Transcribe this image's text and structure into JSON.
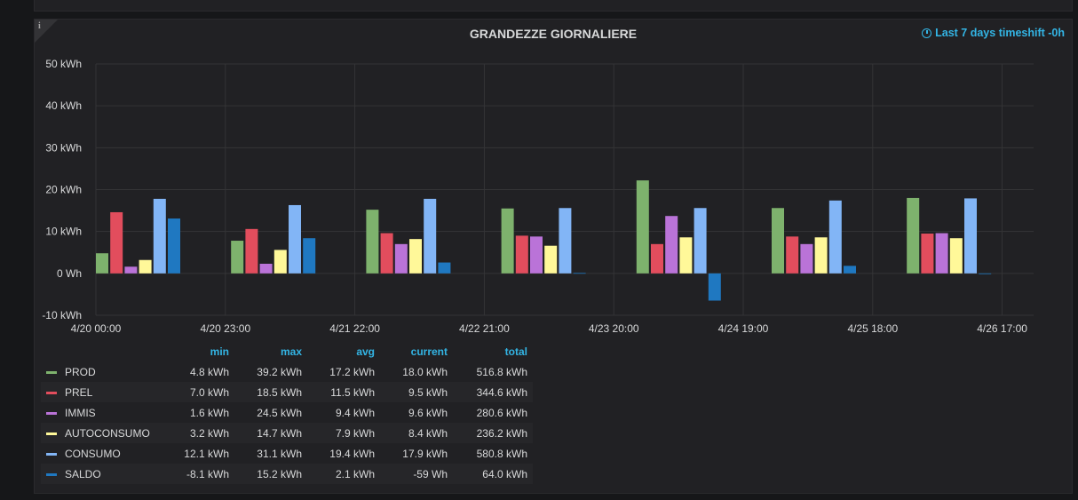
{
  "panel": {
    "title": "GRANDEZZE GIORNALIERE",
    "timeshift": "Last 7 days timeshift -0h",
    "info_icon": "i"
  },
  "chart_data": {
    "type": "bar",
    "title": "GRANDEZZE GIORNALIERE",
    "xlabel": "",
    "ylabel": "",
    "grid": true,
    "legend_placement": "bottom",
    "y_ticks": [
      "50 kWh",
      "40 kWh",
      "30 kWh",
      "20 kWh",
      "10 kWh",
      "0 Wh",
      "-10 kWh"
    ],
    "y_tick_values": [
      50,
      40,
      30,
      20,
      10,
      0,
      -10
    ],
    "ylim": [
      -10,
      50
    ],
    "x_ticks": [
      "4/20 00:00",
      "4/20 23:00",
      "4/21 22:00",
      "4/22 21:00",
      "4/23 20:00",
      "4/24 19:00",
      "4/25 18:00",
      "4/26 17:00"
    ],
    "categories": [
      "4/20",
      "4/21",
      "4/22",
      "4/23",
      "4/24",
      "4/25",
      "4/26"
    ],
    "series": [
      {
        "name": "PROD",
        "color": "#7eb26d",
        "values": [
          4.8,
          7.8,
          15.2,
          15.5,
          22.2,
          15.6,
          18.0
        ]
      },
      {
        "name": "PREL",
        "color": "#e24d5d",
        "values": [
          14.6,
          10.6,
          9.6,
          9.0,
          7.0,
          8.8,
          9.5
        ]
      },
      {
        "name": "IMMIS",
        "color": "#ba73d8",
        "values": [
          1.6,
          2.3,
          7.0,
          8.8,
          13.7,
          7.0,
          9.6
        ]
      },
      {
        "name": "AUTOCONSUMO",
        "color": "#fff899",
        "values": [
          3.2,
          5.6,
          8.2,
          6.6,
          8.6,
          8.6,
          8.4
        ]
      },
      {
        "name": "CONSUMO",
        "color": "#82b5f6",
        "values": [
          17.8,
          16.3,
          17.8,
          15.6,
          15.6,
          17.4,
          17.9
        ]
      },
      {
        "name": "SALDO",
        "color": "#1f78c1",
        "values": [
          13.1,
          8.4,
          2.6,
          0.1,
          -6.5,
          1.8,
          0.0
        ]
      }
    ]
  },
  "legend": {
    "headers": [
      "min",
      "max",
      "avg",
      "current",
      "total"
    ],
    "rows": [
      {
        "name": "PROD",
        "color": "#7eb26d",
        "min": "4.8 kWh",
        "max": "39.2 kWh",
        "avg": "17.2 kWh",
        "current": "18.0 kWh",
        "total": "516.8 kWh"
      },
      {
        "name": "PREL",
        "color": "#e24d5d",
        "min": "7.0 kWh",
        "max": "18.5 kWh",
        "avg": "11.5 kWh",
        "current": "9.5 kWh",
        "total": "344.6 kWh"
      },
      {
        "name": "IMMIS",
        "color": "#ba73d8",
        "min": "1.6 kWh",
        "max": "24.5 kWh",
        "avg": "9.4 kWh",
        "current": "9.6 kWh",
        "total": "280.6 kWh"
      },
      {
        "name": "AUTOCONSUMO",
        "color": "#fff899",
        "min": "3.2 kWh",
        "max": "14.7 kWh",
        "avg": "7.9 kWh",
        "current": "8.4 kWh",
        "total": "236.2 kWh"
      },
      {
        "name": "CONSUMO",
        "color": "#82b5f6",
        "min": "12.1 kWh",
        "max": "31.1 kWh",
        "avg": "19.4 kWh",
        "current": "17.9 kWh",
        "total": "580.8 kWh"
      },
      {
        "name": "SALDO",
        "color": "#1f78c1",
        "min": "-8.1 kWh",
        "max": "15.2 kWh",
        "avg": "2.1 kWh",
        "current": "-59 Wh",
        "total": "64.0 kWh"
      }
    ]
  }
}
